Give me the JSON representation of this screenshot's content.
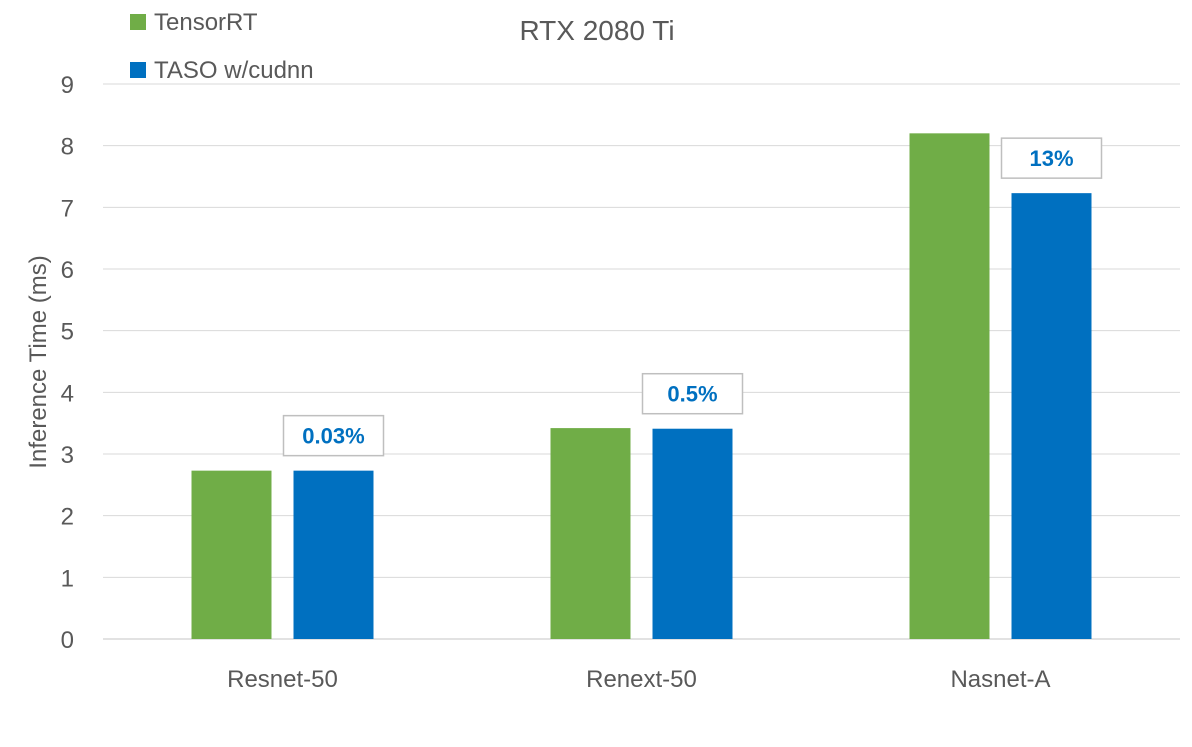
{
  "chart_data": {
    "type": "bar",
    "title": "RTX 2080 Ti",
    "xlabel": "",
    "ylabel": "Inference Time (ms)",
    "ylim": [
      0,
      9
    ],
    "yticks": [
      "0",
      "1",
      "2",
      "3",
      "4",
      "5",
      "6",
      "7",
      "8",
      "9"
    ],
    "grid": true,
    "legend_position": "top-left",
    "categories": [
      "Resnet-50",
      "Renext-50",
      "Nasnet-A"
    ],
    "series": [
      {
        "name": "TensorRT",
        "color": "#70AD47",
        "values": [
          2.73,
          3.42,
          8.2
        ]
      },
      {
        "name": "TASO w/cudnn",
        "color": "#0070C0",
        "values": [
          2.73,
          3.41,
          7.23
        ]
      }
    ],
    "annotations": [
      {
        "category": "Resnet-50",
        "series": "TASO w/cudnn",
        "label": "0.03%"
      },
      {
        "category": "Renext-50",
        "series": "TASO w/cudnn",
        "label": "0.5%"
      },
      {
        "category": "Nasnet-A",
        "series": "TASO w/cudnn",
        "label": "13%"
      }
    ],
    "colors": {
      "annotation_text": "#0070C0",
      "grid": "#D9D9D9",
      "axis_text": "#595959"
    }
  }
}
